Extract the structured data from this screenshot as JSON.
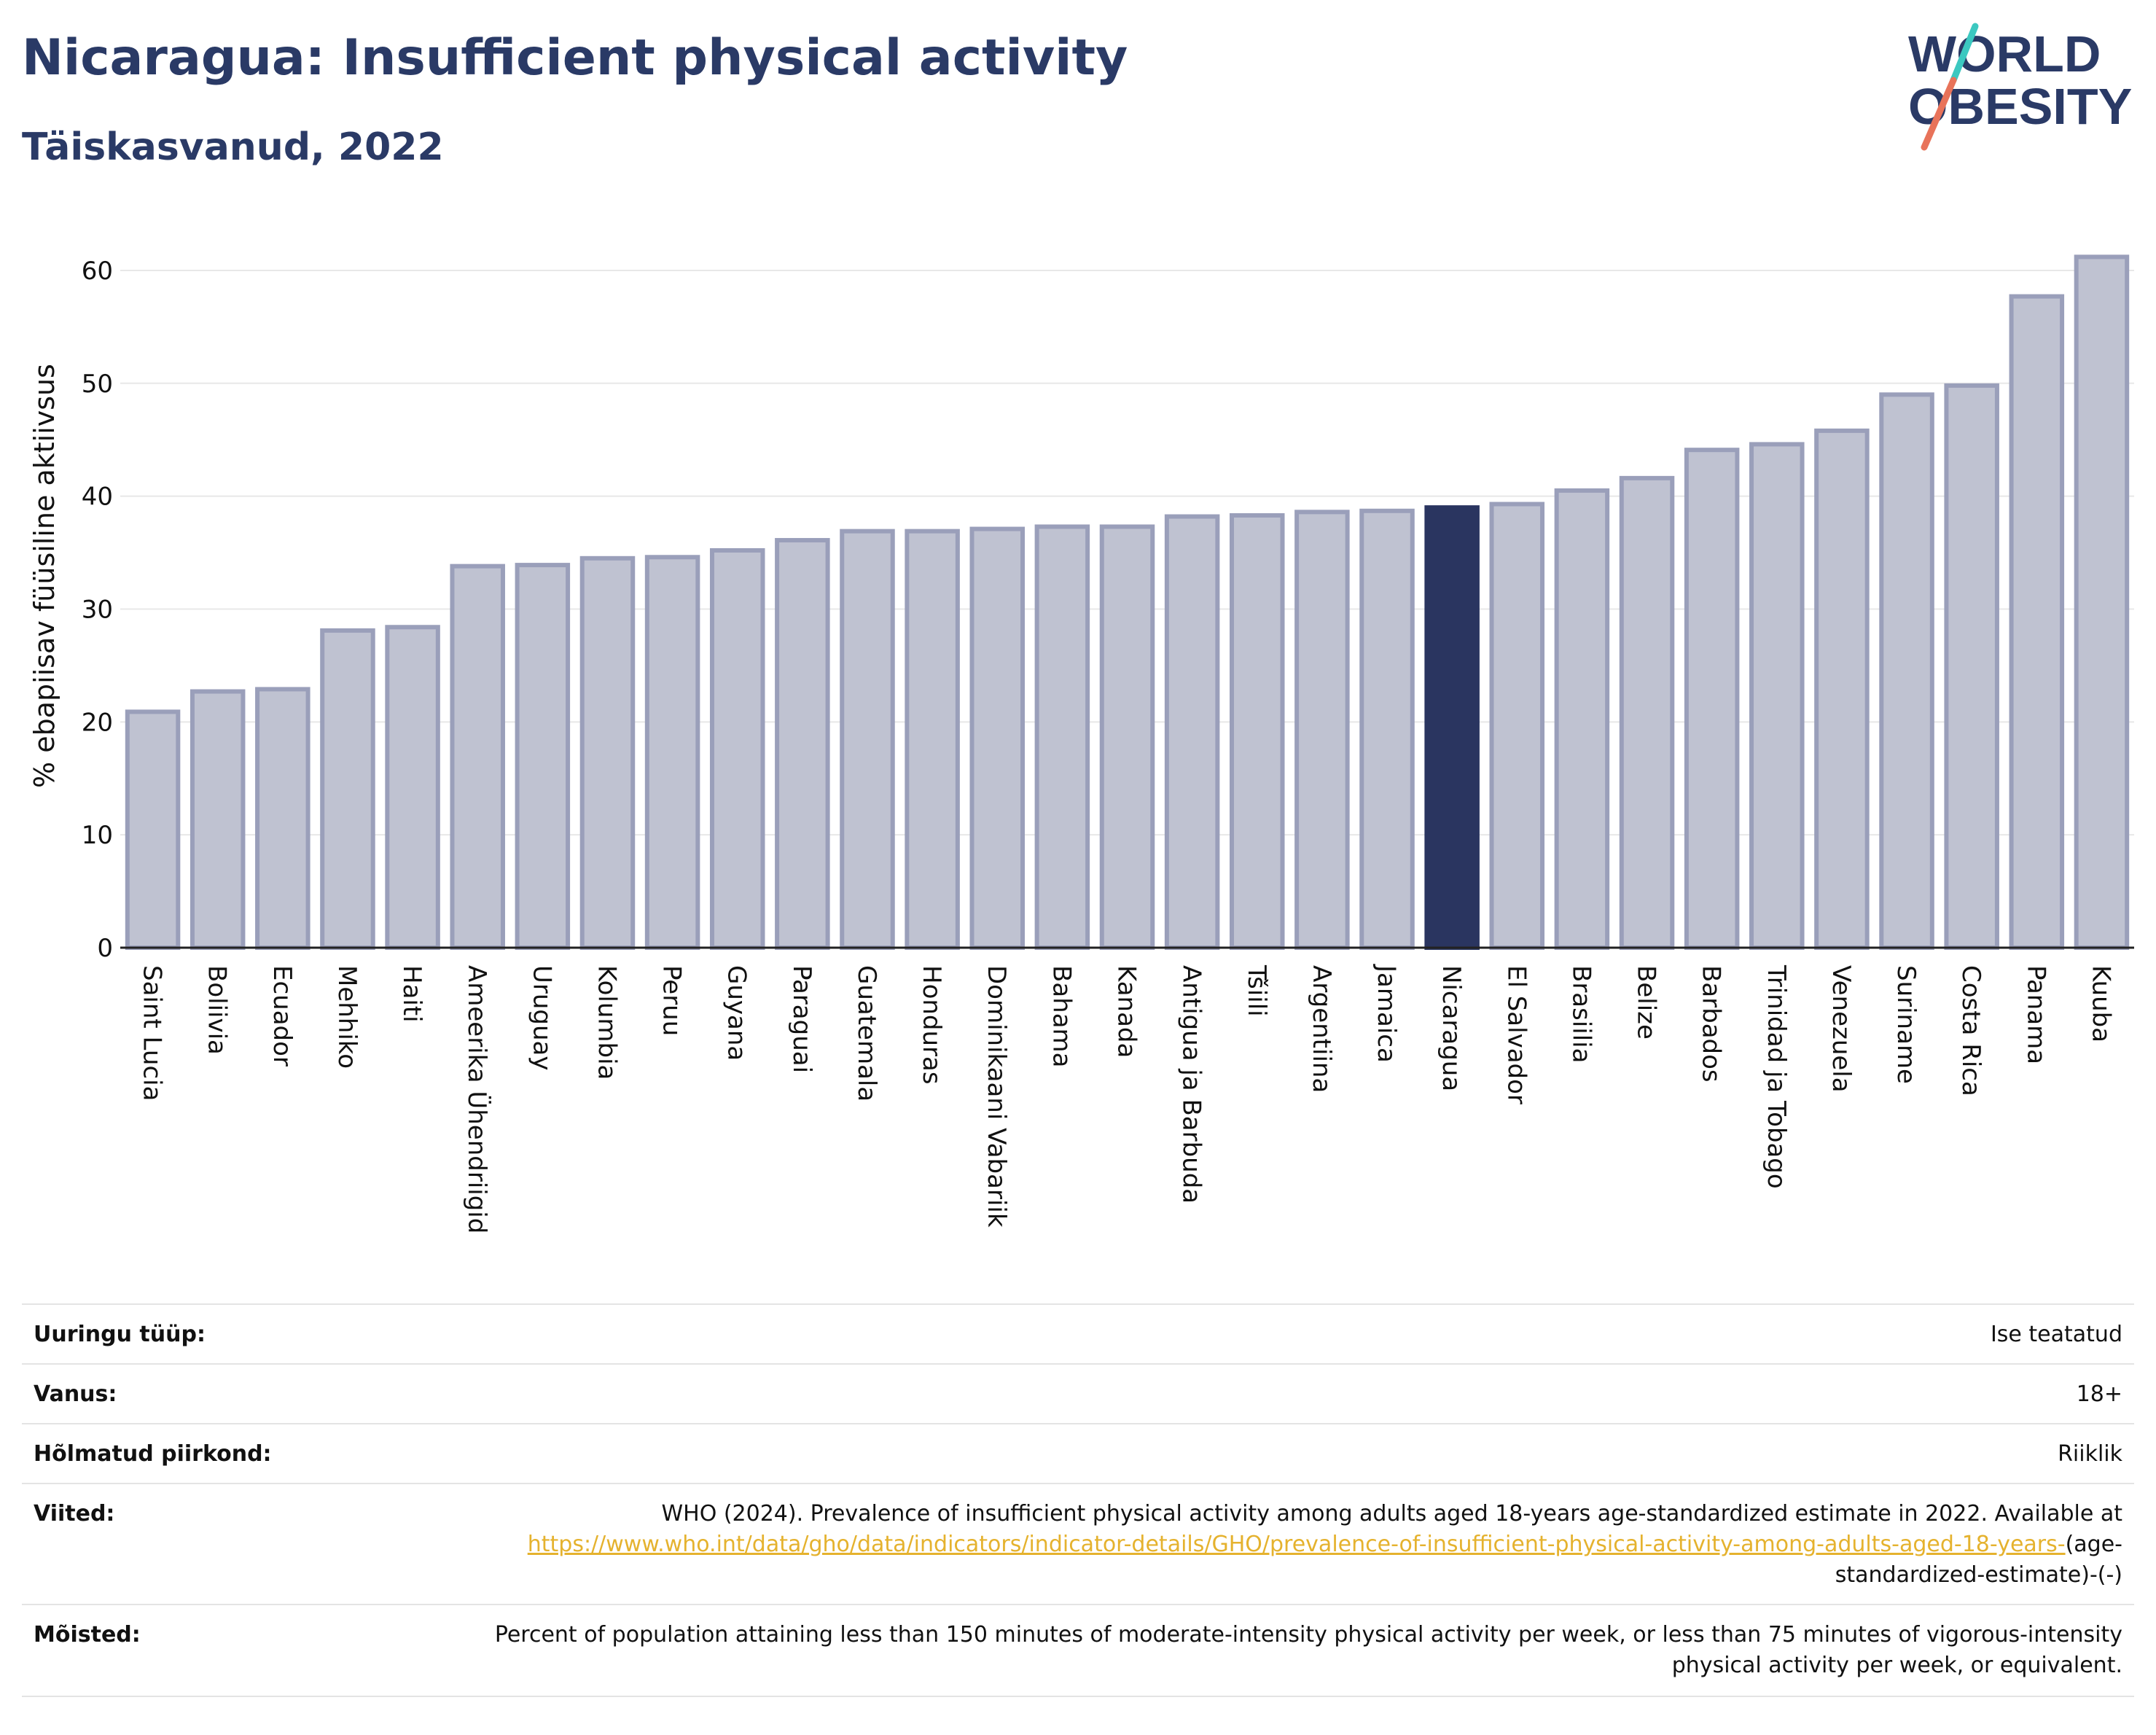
{
  "header": {
    "title": "Nicaragua: Insufficient physical activity",
    "subtitle": "Täiskasvanud, 2022"
  },
  "logo": {
    "line1": "WORLD",
    "line2": "OBESITY",
    "text_color": "#2a3a66",
    "slash_colors": [
      "#3cc8c0",
      "#e8735a"
    ]
  },
  "colors": {
    "bar_default": "#bfc2d1",
    "bar_border": "#9a9fba",
    "bar_highlight": "#2a3560",
    "grid": "#e8e8e8",
    "axis": "#222222"
  },
  "chart_data": {
    "type": "bar",
    "title": "Nicaragua: Insufficient physical activity",
    "subtitle": "Täiskasvanud, 2022",
    "ylabel": "% ebapiisav füüsiline aktiivsus",
    "xlabel": "",
    "ylim": [
      0,
      62
    ],
    "yticks": [
      0,
      10,
      20,
      30,
      40,
      50,
      60
    ],
    "grid": true,
    "highlight": "Nicaragua",
    "categories": [
      "Saint Lucia",
      "Boliivia",
      "Ecuador",
      "Mehhiko",
      "Haiti",
      "Ameerika Ühendriigid",
      "Uruguay",
      "Kolumbia",
      "Peruu",
      "Guyana",
      "Paraguai",
      "Guatemala",
      "Honduras",
      "Dominikaani Vabariik",
      "Bahama",
      "Kanada",
      "Antigua ja Barbuda",
      "Tšiili",
      "Argentiina",
      "Jamaica",
      "Nicaragua",
      "El Salvador",
      "Brasiilia",
      "Belize",
      "Barbados",
      "Trinidad ja Tobago",
      "Venezuela",
      "Suriname",
      "Costa Rica",
      "Panama",
      "Kuuba"
    ],
    "values": [
      20.9,
      22.7,
      22.9,
      28.1,
      28.4,
      33.8,
      33.9,
      34.5,
      34.6,
      35.2,
      36.1,
      36.9,
      36.9,
      37.1,
      37.3,
      37.3,
      38.2,
      38.3,
      38.6,
      38.7,
      39.0,
      39.3,
      40.5,
      41.6,
      44.1,
      44.6,
      45.8,
      49.0,
      49.8,
      57.7,
      61.2
    ]
  },
  "info_table": [
    {
      "key": "Uuringu tüüp:",
      "value": "Ise teatatud"
    },
    {
      "key": "Vanus:",
      "value": "18+"
    },
    {
      "key": "Hõlmatud piirkond:",
      "value": "Riiklik"
    },
    {
      "key": "Viited:",
      "value": "WHO (2024). Prevalence of insufficient physical activity among adults aged 18-years age-standardized estimate in 2022. Available at",
      "link": "https://www.who.int/data/gho/data/indicators/indicator-details/GHO/prevalence-of-insufficient-physical-activity-among-adults-aged-18-years-",
      "value_suffix": "(age-standardized-estimate)-(-)"
    },
    {
      "key": "Mõisted:",
      "value": "Percent of population attaining less than 150 minutes of moderate-intensity physical activity per week, or less than 75 minutes of vigorous-intensity physical activity per week, or equivalent."
    }
  ]
}
